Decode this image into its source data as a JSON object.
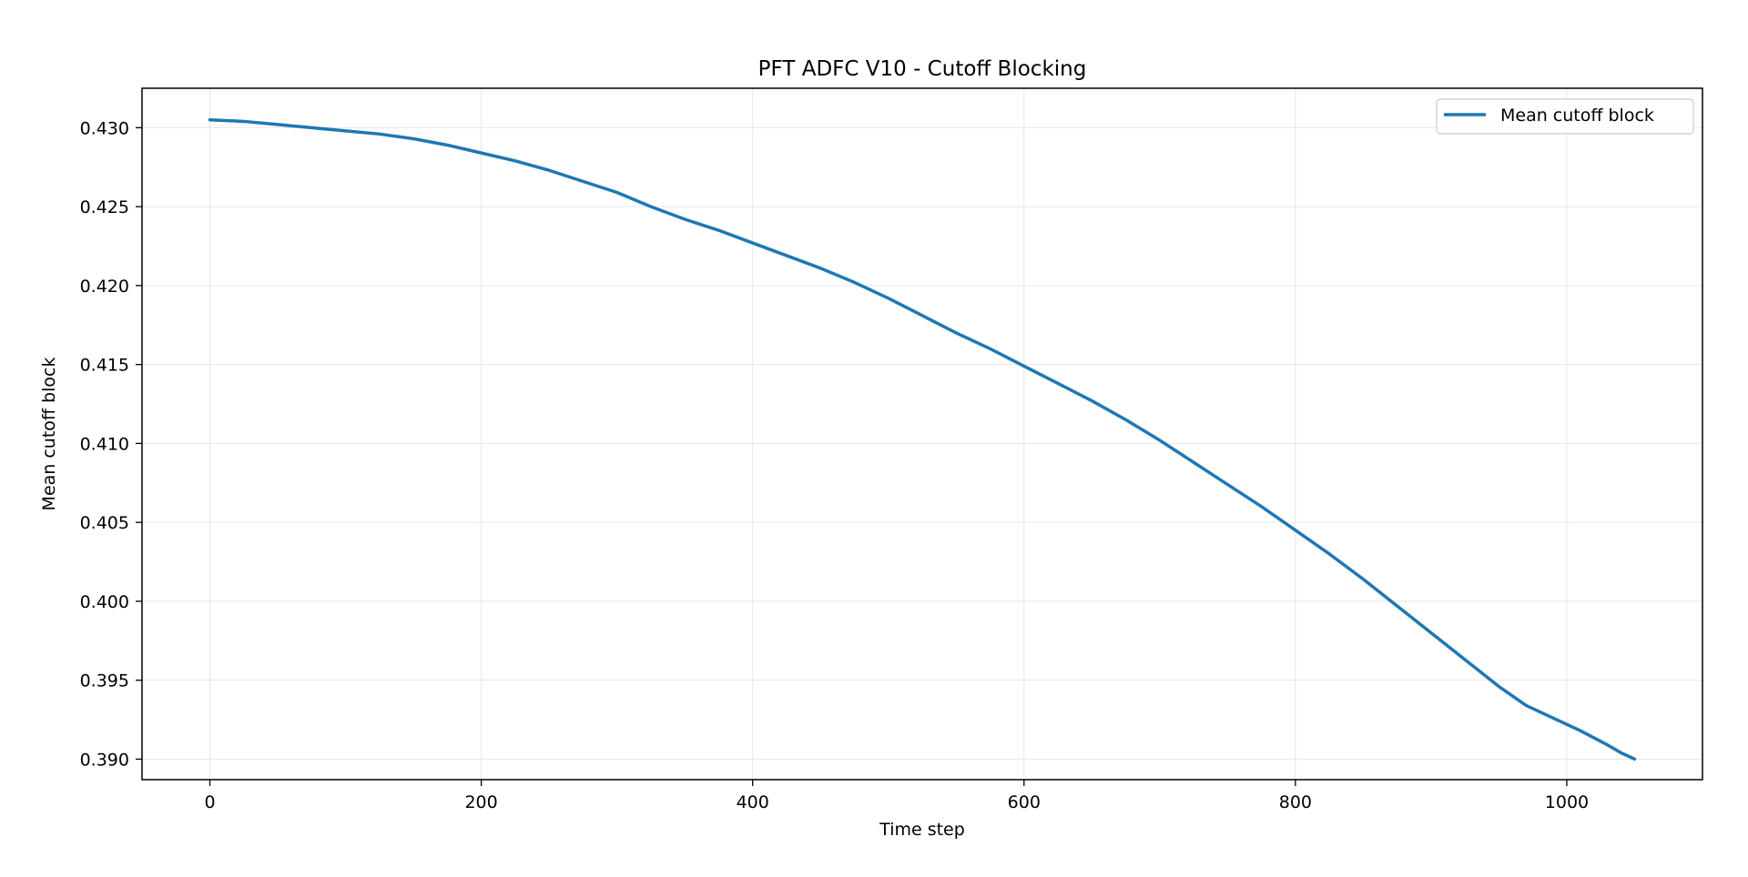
{
  "chart_data": {
    "type": "line",
    "title": "PFT ADFC V10 - Cutoff Blocking",
    "xlabel": "Time step",
    "ylabel": "Mean cutoff block",
    "xlim": [
      -50,
      1100
    ],
    "ylim": [
      0.3887,
      0.4325
    ],
    "x_ticks": [
      0,
      200,
      400,
      600,
      800,
      1000
    ],
    "y_ticks": [
      0.39,
      0.395,
      0.4,
      0.405,
      0.41,
      0.415,
      0.42,
      0.425,
      0.43
    ],
    "x_tick_labels": [
      "0",
      "200",
      "400",
      "600",
      "800",
      "1000"
    ],
    "y_tick_labels": [
      "0.390",
      "0.395",
      "0.400",
      "0.405",
      "0.410",
      "0.415",
      "0.420",
      "0.425",
      "0.430"
    ],
    "grid": true,
    "legend_position": "top-right",
    "series": [
      {
        "name": "Mean cutoff block",
        "color": "#1f77b4",
        "x": [
          0,
          25,
          50,
          75,
          100,
          125,
          150,
          175,
          200,
          225,
          250,
          275,
          300,
          325,
          350,
          375,
          400,
          425,
          450,
          475,
          500,
          525,
          550,
          575,
          600,
          625,
          650,
          675,
          700,
          725,
          750,
          775,
          800,
          825,
          850,
          875,
          900,
          925,
          950,
          970,
          990,
          1010,
          1030,
          1040,
          1050
        ],
        "y": [
          0.4305,
          0.4304,
          0.4302,
          0.43,
          0.4298,
          0.4296,
          0.4293,
          0.4289,
          0.4284,
          0.4279,
          0.4273,
          0.4266,
          0.4259,
          0.425,
          0.4242,
          0.4235,
          0.4227,
          0.4219,
          0.4211,
          0.4202,
          0.4192,
          0.4181,
          0.417,
          0.416,
          0.4149,
          0.4138,
          0.4127,
          0.4115,
          0.4102,
          0.4088,
          0.4074,
          0.406,
          0.4045,
          0.403,
          0.4014,
          0.3997,
          0.398,
          0.3963,
          0.3946,
          0.3934,
          0.3926,
          0.3918,
          0.3909,
          0.3904,
          0.39
        ]
      }
    ]
  }
}
